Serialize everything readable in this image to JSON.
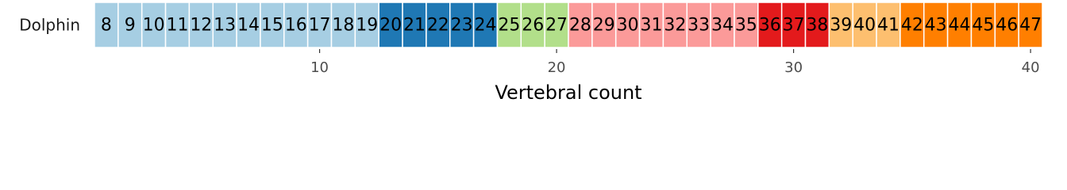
{
  "chart_data": {
    "type": "tile",
    "row": "Dolphin",
    "xlabel": "Vertebral count",
    "xlim": [
      0.4,
      40.6
    ],
    "xticks": [
      10,
      20,
      30,
      40
    ],
    "series": [
      {
        "color": "#a6cee3",
        "x": [
          1,
          2,
          3,
          4,
          5,
          6,
          7,
          8,
          9,
          10,
          11,
          12
        ],
        "labels": [
          8,
          9,
          10,
          11,
          12,
          13,
          14,
          15,
          16,
          17,
          18,
          19
        ]
      },
      {
        "color": "#1f78b4",
        "x": [
          13,
          14,
          15,
          16,
          17
        ],
        "labels": [
          20,
          21,
          22,
          23,
          24
        ]
      },
      {
        "color": "#b2df8a",
        "x": [
          18,
          19,
          20
        ],
        "labels": [
          25,
          26,
          27
        ]
      },
      {
        "color": "#fb9a99",
        "x": [
          21,
          22,
          23,
          24,
          25,
          26,
          27,
          28
        ],
        "labels": [
          28,
          29,
          30,
          31,
          32,
          33,
          34,
          35
        ]
      },
      {
        "color": "#e31a1c",
        "x": [
          29,
          30,
          31
        ],
        "labels": [
          36,
          37,
          38
        ]
      },
      {
        "color": "#fdbf6f",
        "x": [
          32,
          33,
          34
        ],
        "labels": [
          39,
          40,
          41
        ]
      },
      {
        "color": "#ff7f00",
        "x": [
          35,
          36,
          37,
          38,
          39,
          40
        ],
        "labels": [
          42,
          43,
          44,
          45,
          46,
          47
        ]
      }
    ]
  }
}
